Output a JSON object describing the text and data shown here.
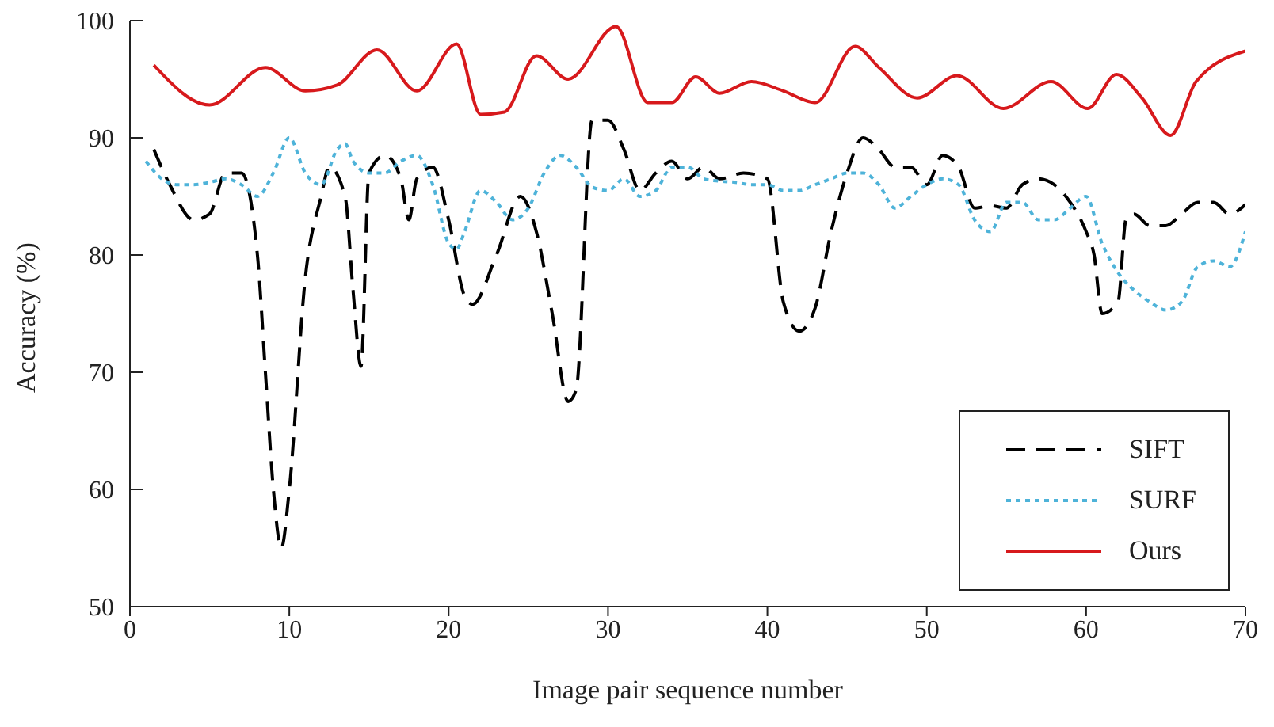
{
  "chart_data": {
    "type": "line",
    "xlabel": "Image pair sequence number",
    "ylabel": "Accuracy (%)",
    "xlim": [
      0,
      70
    ],
    "xticks": [
      0,
      10,
      20,
      30,
      40,
      50,
      60,
      70
    ],
    "ylim": [
      50,
      100
    ],
    "yticks": [
      50,
      60,
      70,
      80,
      90,
      100
    ],
    "grid": false,
    "legend": "bottom right",
    "marker": "none",
    "series": [
      {
        "name": "SIFT",
        "color": "#000000",
        "line_style": "dashed",
        "x": [
          1.5,
          2.5,
          4,
          5,
          6,
          7,
          8,
          8.5,
          9,
          9.5,
          10,
          11,
          12,
          12.5,
          13.5,
          14,
          14.5,
          15,
          16,
          17,
          17.5,
          18,
          19,
          20,
          21,
          21.5,
          23,
          24.5,
          25.5,
          26.5,
          27.5,
          28,
          29,
          30,
          31,
          32,
          33,
          34,
          35,
          36,
          37,
          38.5,
          40,
          41,
          42,
          43,
          44,
          45,
          46,
          47,
          48,
          49,
          50,
          51,
          52,
          53,
          54,
          55,
          56,
          57,
          58,
          59,
          60,
          60.5,
          61,
          62,
          62.5,
          63,
          64,
          65,
          66,
          67,
          68,
          69,
          70
        ],
        "values": [
          89,
          86,
          83,
          83.5,
          87,
          87,
          80,
          70,
          60,
          55,
          60,
          78,
          85,
          87.5,
          85,
          77,
          70.5,
          87,
          88.5,
          86.5,
          83,
          86.5,
          87.5,
          83,
          76.5,
          75.8,
          80,
          85,
          82,
          75,
          67.5,
          68.5,
          91.5,
          91.5,
          89,
          85.5,
          87,
          88,
          86.5,
          87.5,
          86.5,
          87,
          86.5,
          76,
          73.5,
          75.5,
          82,
          87,
          90,
          89,
          87.5,
          87.5,
          86,
          88.5,
          87.5,
          84,
          84.2,
          84,
          86,
          86.5,
          86,
          84.5,
          82,
          80,
          75,
          76,
          83,
          83.5,
          82.5,
          82.5,
          83.5,
          84.5,
          84.5,
          83.5,
          84.3
        ]
      },
      {
        "name": "SURF",
        "color": "#4eb3d9",
        "line_style": "dotted",
        "x": [
          1,
          2,
          3,
          4,
          5,
          6,
          7,
          8,
          9,
          10,
          11,
          12,
          13,
          13.5,
          14,
          15,
          16,
          17,
          18,
          19,
          20,
          20.5,
          21,
          22,
          23,
          24,
          25,
          26,
          27,
          28,
          29,
          30,
          31,
          32,
          33,
          34,
          35,
          36,
          37,
          38,
          39,
          40,
          41,
          42,
          43,
          44,
          45,
          46,
          47,
          48,
          49,
          50,
          51,
          52,
          53,
          54,
          55,
          56,
          57,
          58,
          59,
          60,
          61,
          62,
          63,
          64,
          65,
          66,
          67,
          68,
          69,
          70
        ],
        "values": [
          88,
          86.5,
          86,
          86,
          86.2,
          86.5,
          86,
          85,
          87,
          90,
          87,
          86,
          89,
          89.5,
          88,
          87,
          87,
          88,
          88.5,
          86,
          81,
          80.5,
          82,
          85.5,
          84.5,
          83,
          84,
          87,
          88.5,
          87.5,
          85.8,
          85.5,
          86.5,
          85,
          85.5,
          87.5,
          87.5,
          86.5,
          86.3,
          86.2,
          86,
          86,
          85.5,
          85.5,
          86,
          86.5,
          87,
          87,
          86,
          84,
          85,
          86,
          86.5,
          86,
          83,
          82,
          84.5,
          84.5,
          83,
          83,
          84,
          85,
          81,
          78.5,
          77,
          76,
          75.3,
          76,
          79,
          79.5,
          79,
          82
        ]
      },
      {
        "name": "Ours",
        "color": "#d7191c",
        "line_style": "solid",
        "x": [
          1.5,
          5,
          8.5,
          11,
          13,
          15.5,
          18,
          20.5,
          22,
          23.5,
          25.5,
          27.5,
          30.5,
          32.5,
          34,
          35.5,
          37,
          39,
          41,
          43,
          45.5,
          47,
          49.4,
          51.9,
          54.8,
          57.8,
          60.1,
          61.9,
          63.5,
          65.3,
          66.9,
          70
        ],
        "values": [
          96.2,
          92.8,
          96,
          94,
          94.5,
          97.5,
          94,
          98,
          92,
          92.2,
          97,
          95,
          99.5,
          93,
          93,
          95.2,
          93.8,
          94.8,
          94,
          93,
          97.8,
          96,
          93.4,
          95.3,
          92.5,
          94.8,
          92.5,
          95.4,
          93.4,
          90.2,
          94.8,
          97.4
        ]
      }
    ]
  }
}
